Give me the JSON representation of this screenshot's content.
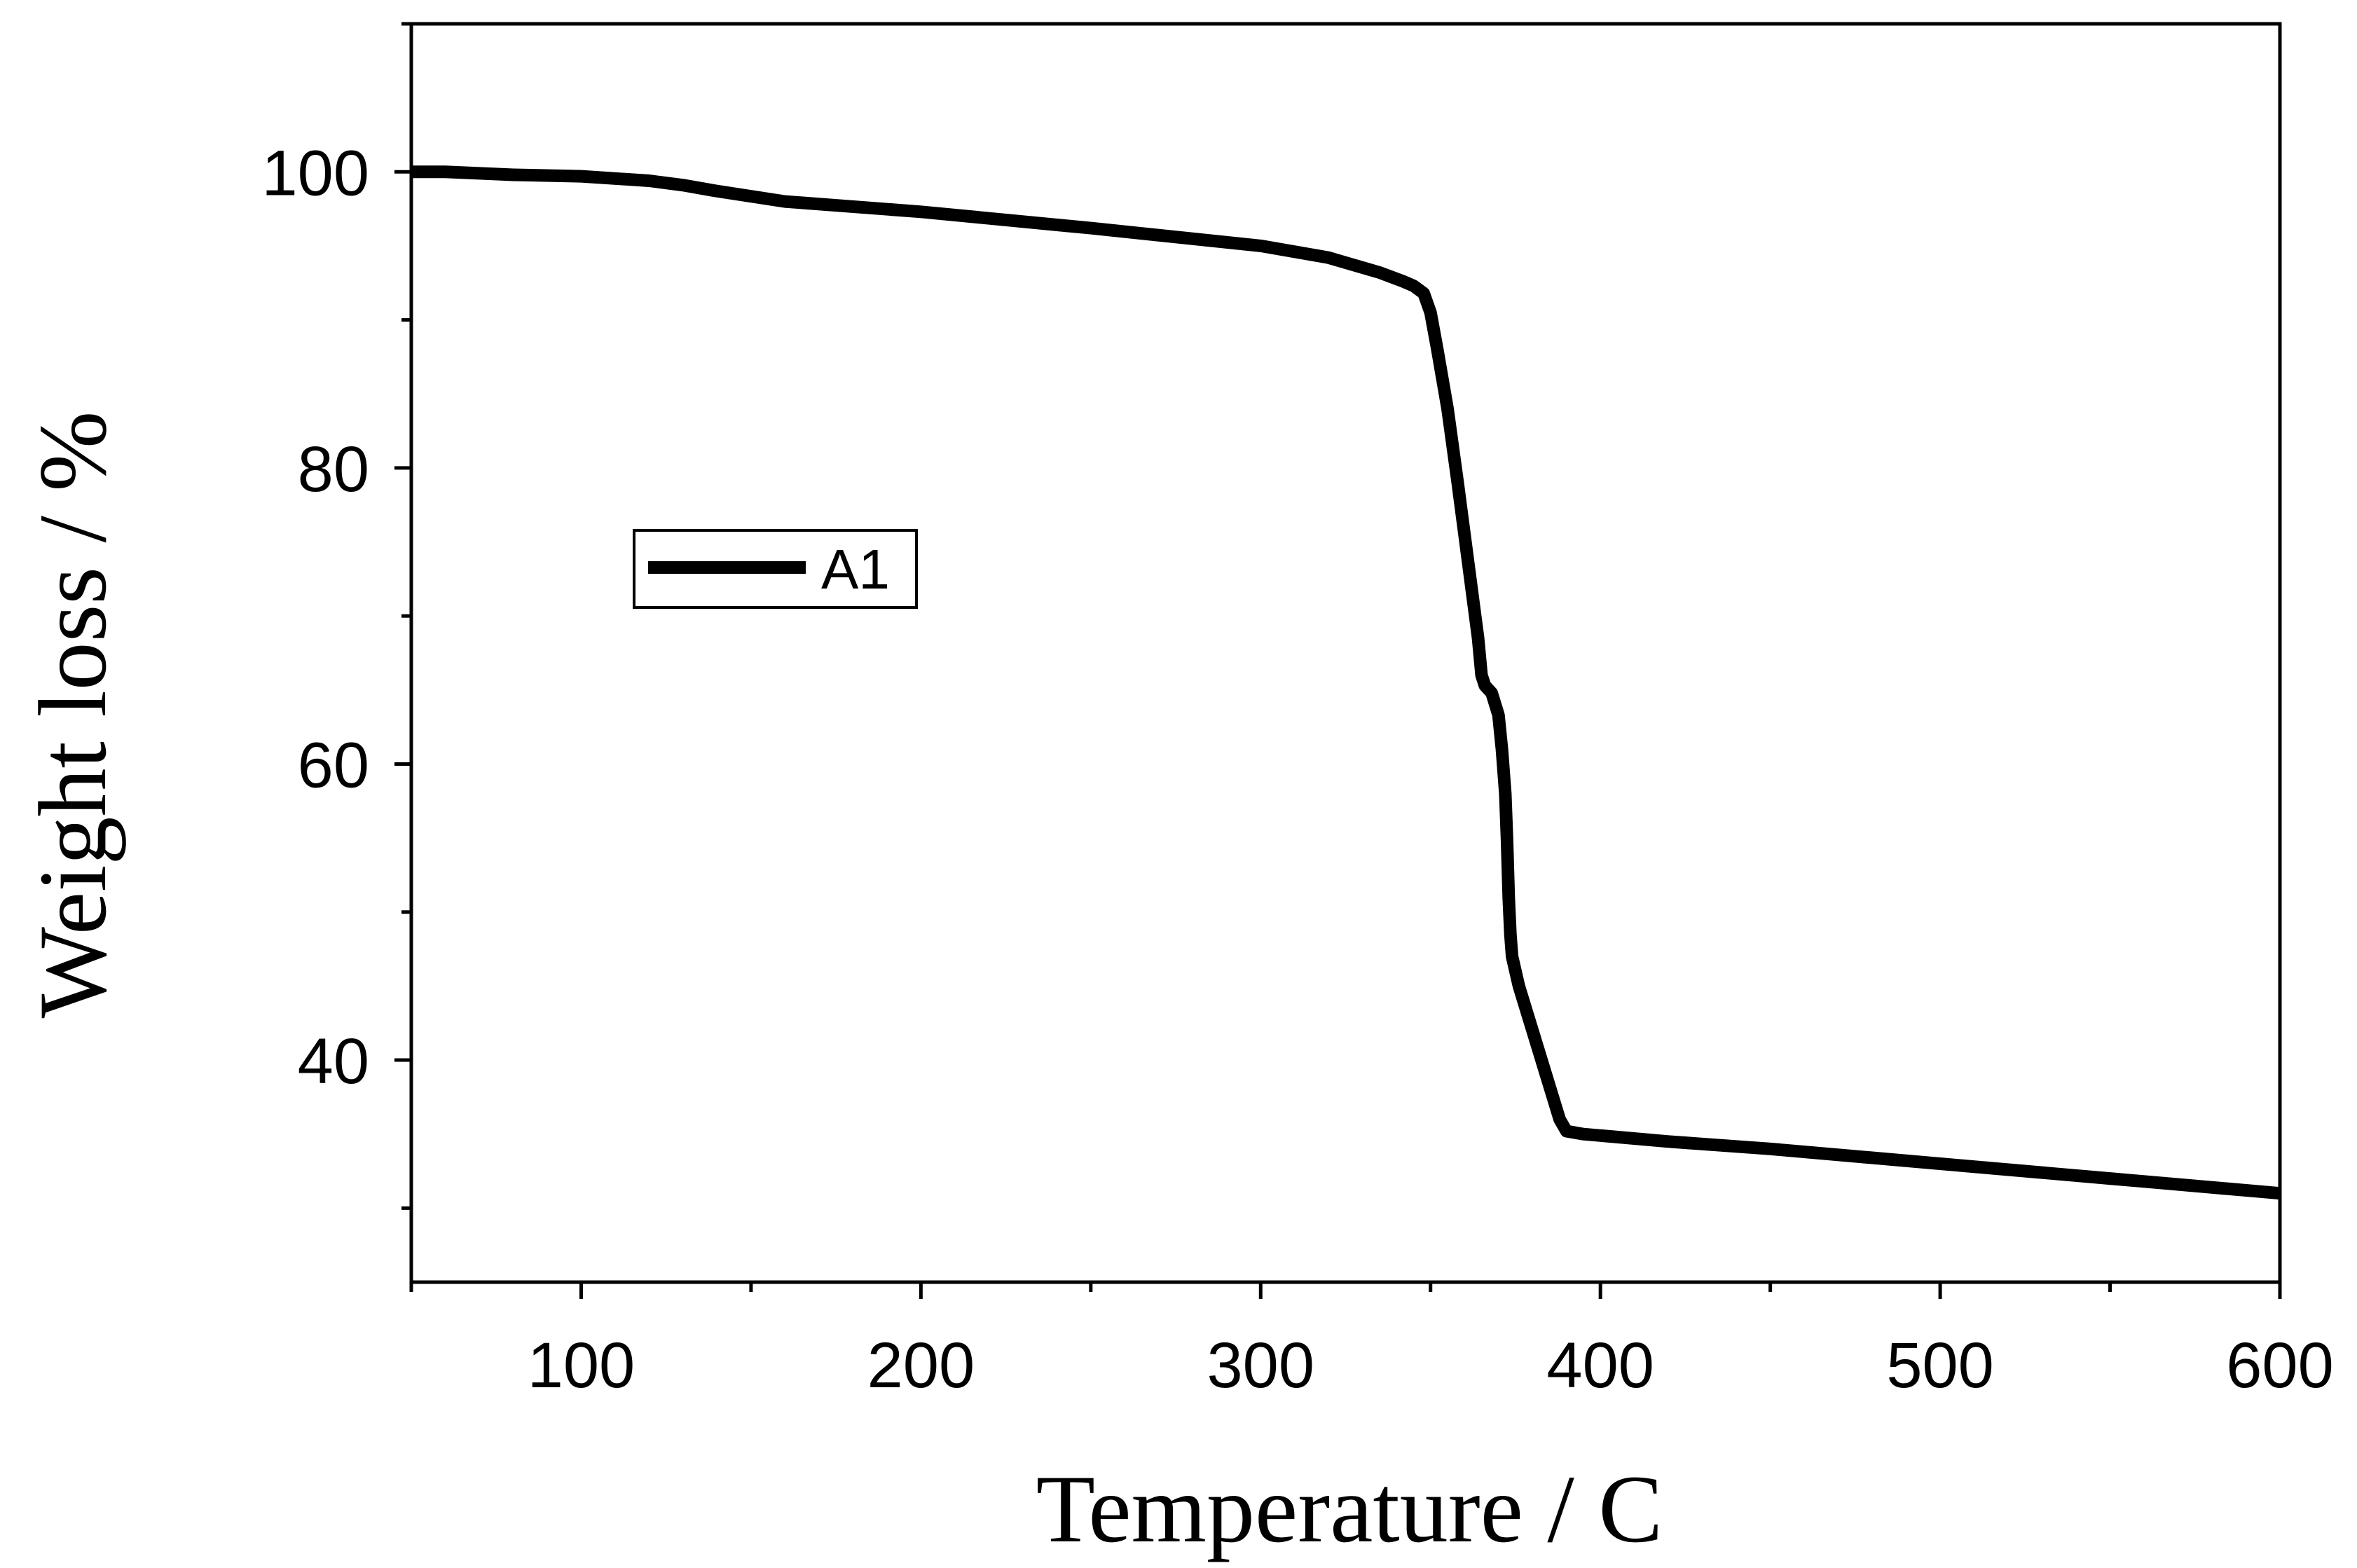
{
  "chart_data": {
    "type": "line",
    "title": "",
    "xlabel": "Temperature / C",
    "ylabel": "Weight loss / %",
    "xlim": [
      50,
      600
    ],
    "ylim": [
      25,
      110
    ],
    "x_ticks_major": [
      100,
      200,
      300,
      400,
      500,
      600
    ],
    "x_ticks_minor": [
      50,
      150,
      250,
      350,
      450,
      550
    ],
    "y_ticks_major": [
      40,
      60,
      80,
      100
    ],
    "y_ticks_minor": [
      30,
      50,
      70,
      90,
      110
    ],
    "grid": false,
    "legend": {
      "position": "upper-left",
      "entries": [
        "A1"
      ]
    },
    "series": [
      {
        "name": "A1",
        "color": "#000000",
        "x": [
          50,
          60,
          80,
          100,
          120,
          130,
          140,
          160,
          200,
          250,
          300,
          320,
          335,
          342,
          345,
          348,
          350,
          352,
          355,
          358,
          360,
          362,
          364,
          365,
          366,
          368,
          370,
          371,
          372,
          372.5,
          373,
          373.5,
          374,
          376,
          378,
          380,
          382,
          384,
          386,
          388,
          390,
          395,
          400,
          420,
          450,
          500,
          550,
          600
        ],
        "y": [
          100,
          100,
          99.8,
          99.7,
          99.4,
          99.1,
          98.7,
          98.0,
          97.3,
          96.2,
          95.0,
          94.2,
          93.2,
          92.6,
          92.3,
          91.8,
          90.5,
          88.0,
          84.0,
          79.0,
          75.5,
          72.0,
          68.5,
          66.0,
          65.3,
          64.8,
          63.3,
          61.0,
          58.0,
          55.0,
          51.0,
          48.5,
          47.0,
          45.0,
          43.5,
          42.0,
          40.5,
          39.0,
          37.5,
          36.0,
          35.2,
          35.0,
          34.9,
          34.5,
          34.0,
          33.0,
          32.0,
          31.0
        ]
      }
    ]
  }
}
